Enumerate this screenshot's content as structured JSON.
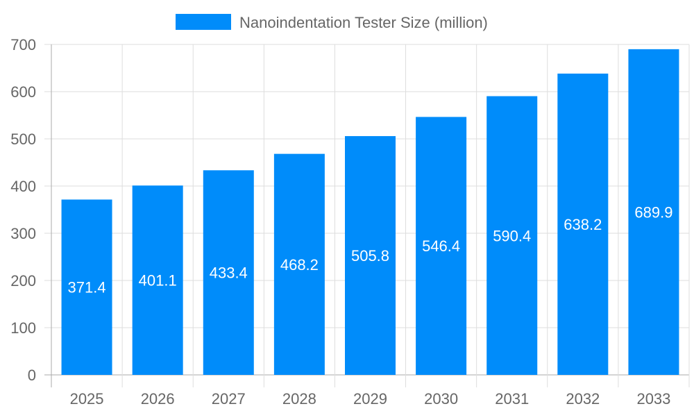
{
  "chart_data": {
    "type": "bar",
    "title": "",
    "xlabel": "",
    "ylabel": "",
    "categories": [
      "2025",
      "2026",
      "2027",
      "2028",
      "2029",
      "2030",
      "2031",
      "2032",
      "2033"
    ],
    "series": [
      {
        "name": "Nanoindentation Tester Size (million)",
        "values": [
          371.4,
          401.1,
          433.4,
          468.2,
          505.8,
          546.4,
          590.4,
          638.2,
          689.9
        ],
        "color": "#008cfa"
      }
    ],
    "data_labels": [
      "371.4",
      "401.1",
      "433.4",
      "468.2",
      "505.8",
      "546.4",
      "590.4",
      "638.2",
      "689.9"
    ],
    "ylim": [
      0,
      700
    ],
    "yticks": [
      "0",
      "100",
      "200",
      "300",
      "400",
      "500",
      "600",
      "700"
    ],
    "grid": true,
    "legend_position": "top"
  }
}
